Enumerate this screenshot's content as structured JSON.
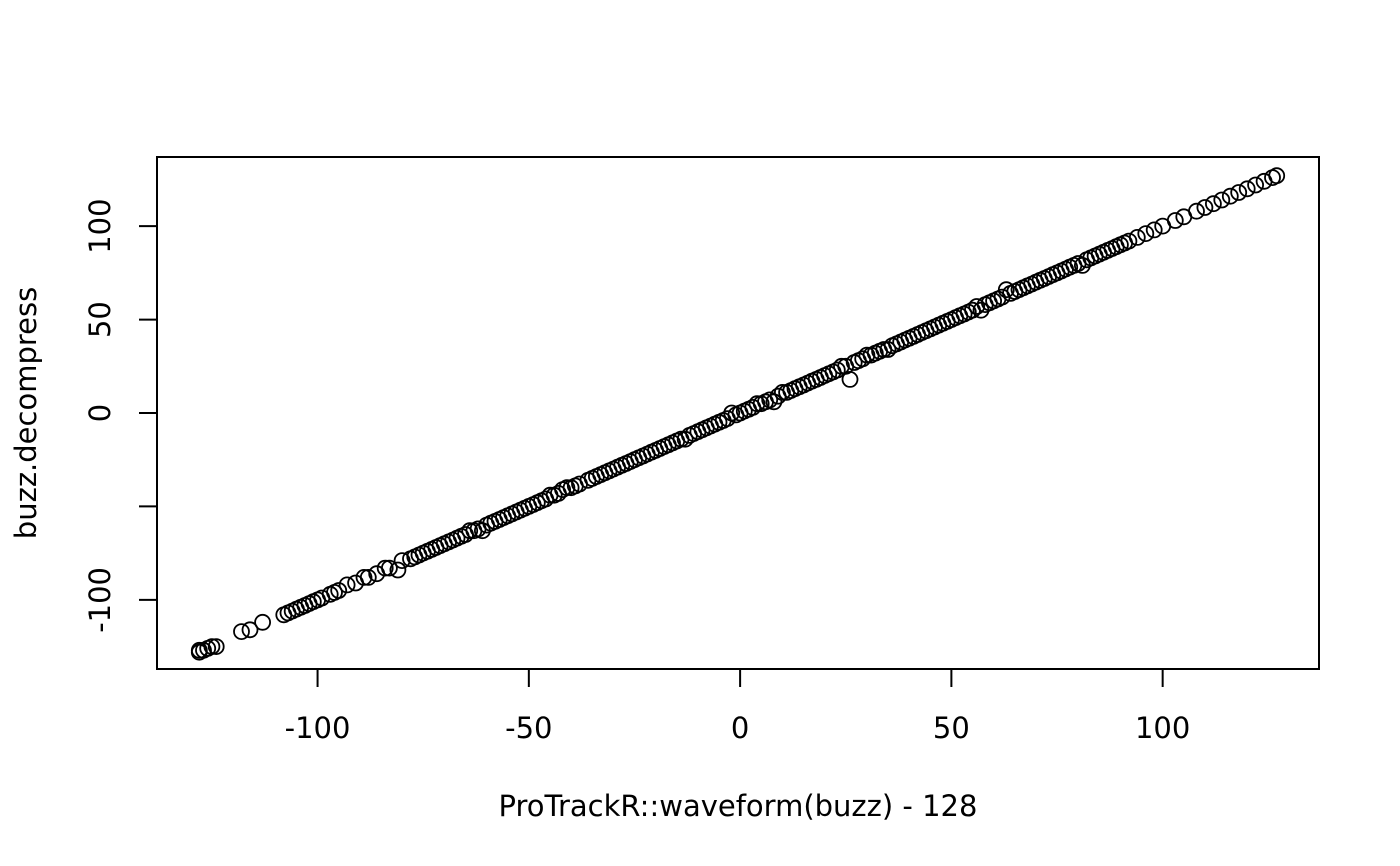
{
  "chart_data": {
    "type": "scatter",
    "xlabel": "ProTrackR::waveform(buzz) - 128",
    "ylabel": "buzz.decompress",
    "xlim": [
      -138,
      137
    ],
    "ylim": [
      -137,
      137
    ],
    "x_ticks": [
      -100,
      -50,
      0,
      50,
      100
    ],
    "x_tick_labels": [
      "-100",
      "-50",
      "0",
      "50",
      "100"
    ],
    "y_ticks": [
      -100,
      -50,
      0,
      50,
      100
    ],
    "y_tick_labels": [
      "-100",
      "",
      "0",
      "50",
      "100"
    ],
    "grid": false,
    "marker": "open-circle",
    "color": "#000000",
    "points": {
      "x": [
        -128,
        -128,
        -127,
        -126,
        -125,
        -124,
        -118,
        -116,
        -113,
        -108,
        -107,
        -106,
        -105,
        -104,
        -103,
        -102,
        -101,
        -100,
        -99,
        -97,
        -96,
        -95,
        -93,
        -91,
        -89,
        -88,
        -86,
        -84,
        -83,
        -81,
        -80,
        -78,
        -77,
        -76,
        -75,
        -74,
        -73,
        -72,
        -71,
        -70,
        -69,
        -68,
        -67,
        -66,
        -65,
        -64,
        -63,
        -62,
        -61,
        -60,
        -59,
        -58,
        -57,
        -56,
        -55,
        -54,
        -53,
        -52,
        -51,
        -50,
        -49,
        -48,
        -47,
        -46,
        -45,
        -44,
        -43,
        -42,
        -41,
        -40,
        -39,
        -38,
        -36,
        -35,
        -34,
        -33,
        -32,
        -31,
        -30,
        -29,
        -28,
        -27,
        -26,
        -25,
        -24,
        -23,
        -22,
        -21,
        -20,
        -19,
        -18,
        -17,
        -16,
        -15,
        -14,
        -13,
        -12,
        -11,
        -10,
        -9,
        -8,
        -7,
        -6,
        -5,
        -4,
        -3,
        -2,
        -1,
        0,
        1,
        2,
        3,
        4,
        5,
        6,
        7,
        8,
        9,
        10,
        11,
        12,
        13,
        14,
        15,
        16,
        17,
        18,
        19,
        20,
        21,
        22,
        23,
        24,
        25,
        26,
        27,
        28,
        29,
        30,
        31,
        32,
        33,
        34,
        35,
        36,
        37,
        38,
        39,
        40,
        41,
        42,
        43,
        44,
        45,
        46,
        47,
        48,
        49,
        50,
        51,
        52,
        53,
        54,
        55,
        56,
        57,
        58,
        59,
        60,
        61,
        62,
        63,
        64,
        65,
        66,
        67,
        68,
        69,
        70,
        71,
        72,
        73,
        74,
        75,
        76,
        77,
        78,
        79,
        80,
        81,
        82,
        83,
        84,
        85,
        86,
        87,
        88,
        89,
        90,
        91,
        92,
        94,
        96,
        98,
        100,
        103,
        105,
        108,
        110,
        112,
        114,
        116,
        118,
        120,
        122,
        124,
        126,
        127
      ],
      "y": [
        -128,
        -127,
        -127,
        -126,
        -125,
        -125,
        -117,
        -116,
        -112,
        -108,
        -107,
        -106,
        -105,
        -104,
        -103,
        -102,
        -101,
        -100,
        -99,
        -97,
        -96,
        -95,
        -92,
        -91,
        -88,
        -88,
        -86,
        -83,
        -83,
        -84,
        -79,
        -78,
        -77,
        -76,
        -75,
        -74,
        -73,
        -72,
        -71,
        -70,
        -69,
        -68,
        -67,
        -66,
        -65,
        -63,
        -63,
        -62,
        -63,
        -60,
        -59,
        -58,
        -57,
        -56,
        -55,
        -54,
        -53,
        -52,
        -51,
        -50,
        -49,
        -48,
        -47,
        -46,
        -44,
        -44,
        -43,
        -41,
        -40,
        -40,
        -39,
        -38,
        -36,
        -35,
        -34,
        -33,
        -32,
        -31,
        -30,
        -29,
        -28,
        -27,
        -26,
        -25,
        -24,
        -23,
        -22,
        -21,
        -20,
        -19,
        -18,
        -17,
        -16,
        -15,
        -14,
        -14,
        -12,
        -11,
        -10,
        -9,
        -8,
        -7,
        -6,
        -5,
        -4,
        -3,
        0,
        -1,
        0,
        1,
        2,
        3,
        5,
        5,
        6,
        7,
        6,
        9,
        11,
        11,
        12,
        13,
        14,
        15,
        16,
        17,
        18,
        19,
        20,
        21,
        22,
        23,
        25,
        25,
        18,
        27,
        28,
        29,
        31,
        31,
        32,
        33,
        34,
        34,
        36,
        37,
        38,
        39,
        40,
        41,
        42,
        43,
        44,
        45,
        46,
        47,
        48,
        49,
        50,
        51,
        52,
        53,
        54,
        55,
        57,
        55,
        58,
        59,
        60,
        61,
        62,
        66,
        64,
        65,
        66,
        67,
        68,
        69,
        70,
        71,
        72,
        73,
        74,
        75,
        76,
        77,
        78,
        79,
        80,
        79,
        82,
        83,
        84,
        85,
        86,
        87,
        88,
        89,
        90,
        91,
        92,
        94,
        96,
        98,
        100,
        103,
        105,
        108,
        110,
        112,
        114,
        116,
        118,
        120,
        122,
        124,
        126,
        127
      ]
    }
  }
}
